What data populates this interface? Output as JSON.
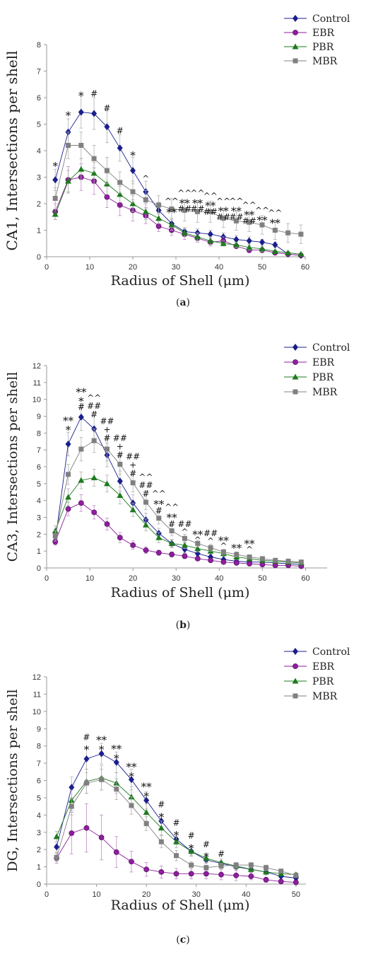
{
  "colors": {
    "Control": "#1a1f8c",
    "EBR": "#8e1e9e",
    "PBR": "#1e7a1e",
    "MBR": "#808080",
    "axis": "#9a9a9a"
  },
  "legend": [
    "Control",
    "EBR",
    "PBR",
    "MBR"
  ],
  "chart_data": [
    {
      "type": "line",
      "panel": "(a)",
      "ylabel": "CA1, Intersections per shell",
      "xlabel": "Radius of Shell (μm)",
      "xlim": [
        0,
        60
      ],
      "ylim": [
        0,
        8
      ],
      "xticks": [
        0,
        10,
        20,
        30,
        40,
        50,
        60
      ],
      "yticks": [
        0,
        1,
        2,
        3,
        4,
        5,
        6,
        7,
        8
      ],
      "x": [
        2,
        5,
        8,
        11,
        14,
        17,
        20,
        23,
        26,
        29,
        32,
        35,
        38,
        41,
        44,
        47,
        50,
        53,
        56,
        59
      ],
      "series": [
        {
          "name": "Control",
          "values": [
            2.9,
            4.7,
            5.45,
            5.4,
            4.9,
            4.1,
            3.25,
            2.45,
            1.75,
            1.25,
            0.95,
            0.9,
            0.85,
            0.75,
            0.65,
            0.6,
            0.55,
            0.45,
            0.1,
            0.05
          ],
          "errors": [
            0.4,
            0.5,
            0.6,
            0.6,
            0.6,
            0.5,
            0.5,
            0.4,
            0.3,
            0.2,
            0.15,
            0.15,
            0.15,
            0.15,
            0.15,
            0.15,
            0.1,
            0.1,
            0.05,
            0.05
          ]
        },
        {
          "name": "EBR",
          "values": [
            1.7,
            2.9,
            3.0,
            2.85,
            2.25,
            1.95,
            1.75,
            1.55,
            1.15,
            1.0,
            0.85,
            0.7,
            0.55,
            0.6,
            0.4,
            0.25,
            0.25,
            0.15,
            0.1,
            0.05
          ],
          "errors": [
            0.3,
            0.5,
            0.5,
            0.5,
            0.4,
            0.4,
            0.4,
            0.3,
            0.2,
            0.2,
            0.2,
            0.15,
            0.15,
            0.15,
            0.1,
            0.1,
            0.1,
            0.05,
            0.05,
            0.05
          ]
        },
        {
          "name": "PBR",
          "values": [
            1.6,
            2.85,
            3.3,
            3.15,
            2.75,
            2.35,
            2.0,
            1.7,
            1.45,
            1.2,
            0.9,
            0.75,
            0.6,
            0.5,
            0.45,
            0.35,
            0.3,
            0.2,
            0.15,
            0.1
          ],
          "errors": [
            0.2,
            0.4,
            0.4,
            0.4,
            0.4,
            0.3,
            0.3,
            0.3,
            0.2,
            0.2,
            0.15,
            0.15,
            0.15,
            0.1,
            0.1,
            0.1,
            0.1,
            0.05,
            0.05,
            0.05
          ]
        },
        {
          "name": "MBR",
          "values": [
            2.2,
            4.2,
            4.2,
            3.7,
            3.25,
            2.8,
            2.45,
            2.15,
            1.95,
            1.8,
            1.75,
            1.7,
            1.7,
            1.45,
            1.35,
            1.3,
            1.2,
            1.0,
            0.9,
            0.85
          ],
          "errors": [
            0.4,
            0.5,
            0.5,
            0.5,
            0.5,
            0.4,
            0.4,
            0.35,
            0.35,
            0.4,
            0.4,
            0.4,
            0.4,
            0.35,
            0.35,
            0.35,
            0.35,
            0.35,
            0.35,
            0.35
          ]
        }
      ],
      "annotations": [
        {
          "x": 2,
          "y": 3.5,
          "text": "*"
        },
        {
          "x": 5,
          "y": 5.4,
          "text": "*"
        },
        {
          "x": 8,
          "y": 6.15,
          "text": "*"
        },
        {
          "x": 11,
          "y": 6.15,
          "text": "#"
        },
        {
          "x": 14,
          "y": 5.6,
          "text": "#"
        },
        {
          "x": 17,
          "y": 4.75,
          "text": "#"
        },
        {
          "x": 20,
          "y": 3.9,
          "text": "*"
        },
        {
          "x": 23,
          "y": 2.95,
          "text": "^"
        },
        {
          "x": 29,
          "y": 2.1,
          "text": "^^"
        },
        {
          "x": 29,
          "y": 1.75,
          "text": "**"
        },
        {
          "x": 32,
          "y": 2.4,
          "text": "^^"
        },
        {
          "x": 32,
          "y": 2.1,
          "text": "**"
        },
        {
          "x": 32,
          "y": 1.8,
          "text": "##"
        },
        {
          "x": 35,
          "y": 2.4,
          "text": "^^"
        },
        {
          "x": 35,
          "y": 2.1,
          "text": "**"
        },
        {
          "x": 35,
          "y": 1.8,
          "text": "##"
        },
        {
          "x": 38,
          "y": 2.3,
          "text": "^^"
        },
        {
          "x": 38,
          "y": 2.0,
          "text": "**"
        },
        {
          "x": 38,
          "y": 1.7,
          "text": "##"
        },
        {
          "x": 41,
          "y": 2.1,
          "text": "^^"
        },
        {
          "x": 41,
          "y": 1.8,
          "text": "**"
        },
        {
          "x": 41,
          "y": 1.5,
          "text": "##"
        },
        {
          "x": 44,
          "y": 2.1,
          "text": "^^"
        },
        {
          "x": 44,
          "y": 1.8,
          "text": "**"
        },
        {
          "x": 44,
          "y": 1.5,
          "text": "##"
        },
        {
          "x": 47,
          "y": 1.95,
          "text": "^^"
        },
        {
          "x": 47,
          "y": 1.65,
          "text": "**"
        },
        {
          "x": 47,
          "y": 1.35,
          "text": "##"
        },
        {
          "x": 50,
          "y": 1.75,
          "text": "^^"
        },
        {
          "x": 50,
          "y": 1.45,
          "text": "**"
        },
        {
          "x": 53,
          "y": 1.65,
          "text": "^^"
        },
        {
          "x": 53,
          "y": 1.35,
          "text": "**"
        }
      ]
    },
    {
      "type": "line",
      "panel": "(b)",
      "ylabel": "CA3, Intersections per shell",
      "xlabel": "Radius of Shell (μm)",
      "xlim": [
        0,
        65
      ],
      "ylim": [
        0,
        12
      ],
      "xticks": [
        0,
        10,
        20,
        30,
        40,
        50,
        60
      ],
      "yticks": [
        0,
        1,
        2,
        3,
        4,
        5,
        6,
        7,
        8,
        9,
        10,
        11,
        12
      ],
      "x": [
        2,
        5,
        8,
        11,
        14,
        17,
        20,
        23,
        26,
        29,
        32,
        35,
        38,
        41,
        44,
        47,
        50,
        53,
        56,
        59
      ],
      "series": [
        {
          "name": "Control",
          "values": [
            1.6,
            7.35,
            8.95,
            8.25,
            6.7,
            5.15,
            3.85,
            2.85,
            2.05,
            1.45,
            1.1,
            0.85,
            0.65,
            0.5,
            0.4,
            0.35,
            0.35,
            0.3,
            0.25,
            0.2
          ],
          "errors": [
            0.2,
            0.7,
            0.8,
            0.8,
            0.7,
            0.6,
            0.5,
            0.4,
            0.3,
            0.2,
            0.2,
            0.15,
            0.15,
            0.1,
            0.1,
            0.1,
            0.1,
            0.1,
            0.1,
            0.1
          ]
        },
        {
          "name": "EBR",
          "values": [
            1.55,
            3.5,
            3.85,
            3.3,
            2.6,
            1.8,
            1.35,
            1.05,
            0.9,
            0.8,
            0.7,
            0.55,
            0.45,
            0.35,
            0.3,
            0.25,
            0.2,
            0.15,
            0.15,
            0.1
          ],
          "errors": [
            0.2,
            0.4,
            0.5,
            0.4,
            0.35,
            0.3,
            0.25,
            0.2,
            0.15,
            0.15,
            0.15,
            0.1,
            0.1,
            0.1,
            0.1,
            0.1,
            0.05,
            0.05,
            0.05,
            0.05
          ]
        },
        {
          "name": "PBR",
          "values": [
            2.2,
            4.2,
            5.2,
            5.35,
            5.0,
            4.3,
            3.45,
            2.55,
            1.8,
            1.45,
            1.35,
            1.15,
            1.0,
            0.85,
            0.65,
            0.55,
            0.45,
            0.4,
            0.35,
            0.3
          ],
          "errors": [
            0.3,
            0.5,
            0.5,
            0.5,
            0.5,
            0.5,
            0.4,
            0.35,
            0.3,
            0.25,
            0.2,
            0.2,
            0.15,
            0.15,
            0.15,
            0.1,
            0.1,
            0.1,
            0.1,
            0.1
          ]
        },
        {
          "name": "MBR",
          "values": [
            1.9,
            5.55,
            7.05,
            7.55,
            7.05,
            6.15,
            5.05,
            3.9,
            2.95,
            2.2,
            1.75,
            1.45,
            1.2,
            0.95,
            0.8,
            0.65,
            0.55,
            0.45,
            0.4,
            0.35
          ],
          "errors": [
            0.3,
            0.6,
            0.7,
            0.7,
            0.7,
            0.6,
            0.55,
            0.45,
            0.35,
            0.3,
            0.25,
            0.2,
            0.2,
            0.15,
            0.15,
            0.1,
            0.1,
            0.1,
            0.1,
            0.1
          ]
        }
      ],
      "annotations": [
        {
          "x": 5,
          "y": 8.85,
          "text": "**"
        },
        {
          "x": 5,
          "y": 8.3,
          "text": "*"
        },
        {
          "x": 8,
          "y": 10.55,
          "text": "**"
        },
        {
          "x": 8,
          "y": 10.0,
          "text": "*"
        },
        {
          "x": 8,
          "y": 9.55,
          "text": "#"
        },
        {
          "x": 11,
          "y": 10.1,
          "text": "^^"
        },
        {
          "x": 11,
          "y": 9.6,
          "text": "##"
        },
        {
          "x": 11,
          "y": 9.1,
          "text": "#"
        },
        {
          "x": 14,
          "y": 8.7,
          "text": "##"
        },
        {
          "x": 14,
          "y": 8.2,
          "text": "+"
        },
        {
          "x": 14,
          "y": 7.7,
          "text": "#"
        },
        {
          "x": 17,
          "y": 7.7,
          "text": "##"
        },
        {
          "x": 17,
          "y": 7.2,
          "text": "+"
        },
        {
          "x": 17,
          "y": 6.7,
          "text": "#"
        },
        {
          "x": 20,
          "y": 6.6,
          "text": "##"
        },
        {
          "x": 20,
          "y": 6.1,
          "text": "+"
        },
        {
          "x": 20,
          "y": 5.6,
          "text": "#"
        },
        {
          "x": 23,
          "y": 5.4,
          "text": "^^"
        },
        {
          "x": 23,
          "y": 4.9,
          "text": "##"
        },
        {
          "x": 23,
          "y": 4.4,
          "text": "#"
        },
        {
          "x": 26,
          "y": 4.4,
          "text": "^^"
        },
        {
          "x": 26,
          "y": 3.9,
          "text": "**"
        },
        {
          "x": 26,
          "y": 3.4,
          "text": "#"
        },
        {
          "x": 29,
          "y": 3.6,
          "text": "^^"
        },
        {
          "x": 29,
          "y": 3.1,
          "text": "**"
        },
        {
          "x": 29,
          "y": 2.6,
          "text": "#"
        },
        {
          "x": 32,
          "y": 2.6,
          "text": "##"
        },
        {
          "x": 32,
          "y": 2.15,
          "text": "^"
        },
        {
          "x": 35,
          "y": 2.1,
          "text": "**"
        },
        {
          "x": 35,
          "y": 1.65,
          "text": "^"
        },
        {
          "x": 38,
          "y": 2.05,
          "text": "##"
        },
        {
          "x": 38,
          "y": 1.6,
          "text": "^"
        },
        {
          "x": 41,
          "y": 1.75,
          "text": "**"
        },
        {
          "x": 41,
          "y": 1.3,
          "text": "^"
        },
        {
          "x": 44,
          "y": 1.3,
          "text": "**"
        },
        {
          "x": 47,
          "y": 1.55,
          "text": "**"
        },
        {
          "x": 47,
          "y": 1.1,
          "text": "^"
        }
      ]
    },
    {
      "type": "line",
      "panel": "(c)",
      "ylabel": "DG, Intersections per shell",
      "xlabel": "Radius of Shell (μm)",
      "xlim": [
        0,
        52
      ],
      "ylim": [
        0,
        12
      ],
      "xticks": [
        0,
        10,
        20,
        30,
        40,
        50
      ],
      "yticks": [
        0,
        1,
        2,
        3,
        4,
        5,
        6,
        7,
        8,
        9,
        10,
        11,
        12
      ],
      "x": [
        2,
        5,
        8,
        11,
        14,
        17,
        20,
        23,
        26,
        29,
        32,
        35,
        38,
        41,
        44,
        47,
        50
      ],
      "series": [
        {
          "name": "Control",
          "values": [
            2.15,
            5.6,
            7.25,
            7.55,
            7.05,
            6.05,
            4.85,
            3.65,
            2.6,
            1.9,
            1.4,
            1.2,
            1.0,
            0.85,
            0.7,
            0.45,
            0.35
          ],
          "errors": [
            0.3,
            0.6,
            0.6,
            0.6,
            0.6,
            0.6,
            0.5,
            0.4,
            0.3,
            0.25,
            0.2,
            0.15,
            0.15,
            0.15,
            0.1,
            0.1,
            0.1
          ]
        },
        {
          "name": "EBR",
          "values": [
            1.5,
            2.95,
            3.25,
            2.7,
            1.85,
            1.3,
            0.85,
            0.7,
            0.6,
            0.6,
            0.6,
            0.55,
            0.5,
            0.45,
            0.25,
            0.15,
            0.1
          ],
          "errors": [
            0.3,
            1.2,
            1.4,
            1.3,
            0.9,
            0.6,
            0.4,
            0.35,
            0.3,
            0.3,
            0.3,
            0.3,
            0.3,
            0.2,
            0.15,
            0.1,
            0.1
          ]
        },
        {
          "name": "PBR",
          "values": [
            2.75,
            4.85,
            5.95,
            6.15,
            5.85,
            5.05,
            4.15,
            3.25,
            2.45,
            1.9,
            1.5,
            1.25,
            1.05,
            0.85,
            0.7,
            0.6,
            0.55
          ],
          "errors": [
            0.3,
            0.6,
            0.7,
            0.7,
            0.6,
            0.6,
            0.5,
            0.4,
            0.35,
            0.3,
            0.25,
            0.2,
            0.2,
            0.15,
            0.15,
            0.1,
            0.1
          ]
        },
        {
          "name": "MBR",
          "values": [
            1.55,
            4.5,
            5.85,
            6.05,
            5.5,
            4.55,
            3.5,
            2.45,
            1.65,
            1.1,
            0.95,
            1.05,
            1.1,
            1.1,
            0.95,
            0.75,
            0.5
          ],
          "errors": [
            0.25,
            0.5,
            0.6,
            0.6,
            0.6,
            0.5,
            0.4,
            0.35,
            0.3,
            0.2,
            0.15,
            0.15,
            0.15,
            0.15,
            0.15,
            0.1,
            0.1
          ]
        }
      ],
      "annotations": [
        {
          "x": 8,
          "y": 8.5,
          "text": "#"
        },
        {
          "x": 8,
          "y": 7.9,
          "text": "*"
        },
        {
          "x": 11,
          "y": 8.45,
          "text": "**"
        },
        {
          "x": 11,
          "y": 7.9,
          "text": "*"
        },
        {
          "x": 14,
          "y": 7.95,
          "text": "**"
        },
        {
          "x": 14,
          "y": 7.4,
          "text": "*"
        },
        {
          "x": 17,
          "y": 6.9,
          "text": "**"
        },
        {
          "x": 17,
          "y": 6.35,
          "text": "*"
        },
        {
          "x": 20,
          "y": 5.75,
          "text": "**"
        },
        {
          "x": 20,
          "y": 5.2,
          "text": "*"
        },
        {
          "x": 23,
          "y": 4.6,
          "text": "#"
        },
        {
          "x": 23,
          "y": 4.0,
          "text": "*"
        },
        {
          "x": 26,
          "y": 3.55,
          "text": "#"
        },
        {
          "x": 26,
          "y": 2.95,
          "text": "*"
        },
        {
          "x": 29,
          "y": 2.8,
          "text": "#"
        },
        {
          "x": 29,
          "y": 2.2,
          "text": "*"
        },
        {
          "x": 32,
          "y": 2.3,
          "text": "#"
        },
        {
          "x": 32,
          "y": 1.7,
          "text": "*"
        },
        {
          "x": 35,
          "y": 1.75,
          "text": "#"
        }
      ]
    }
  ]
}
